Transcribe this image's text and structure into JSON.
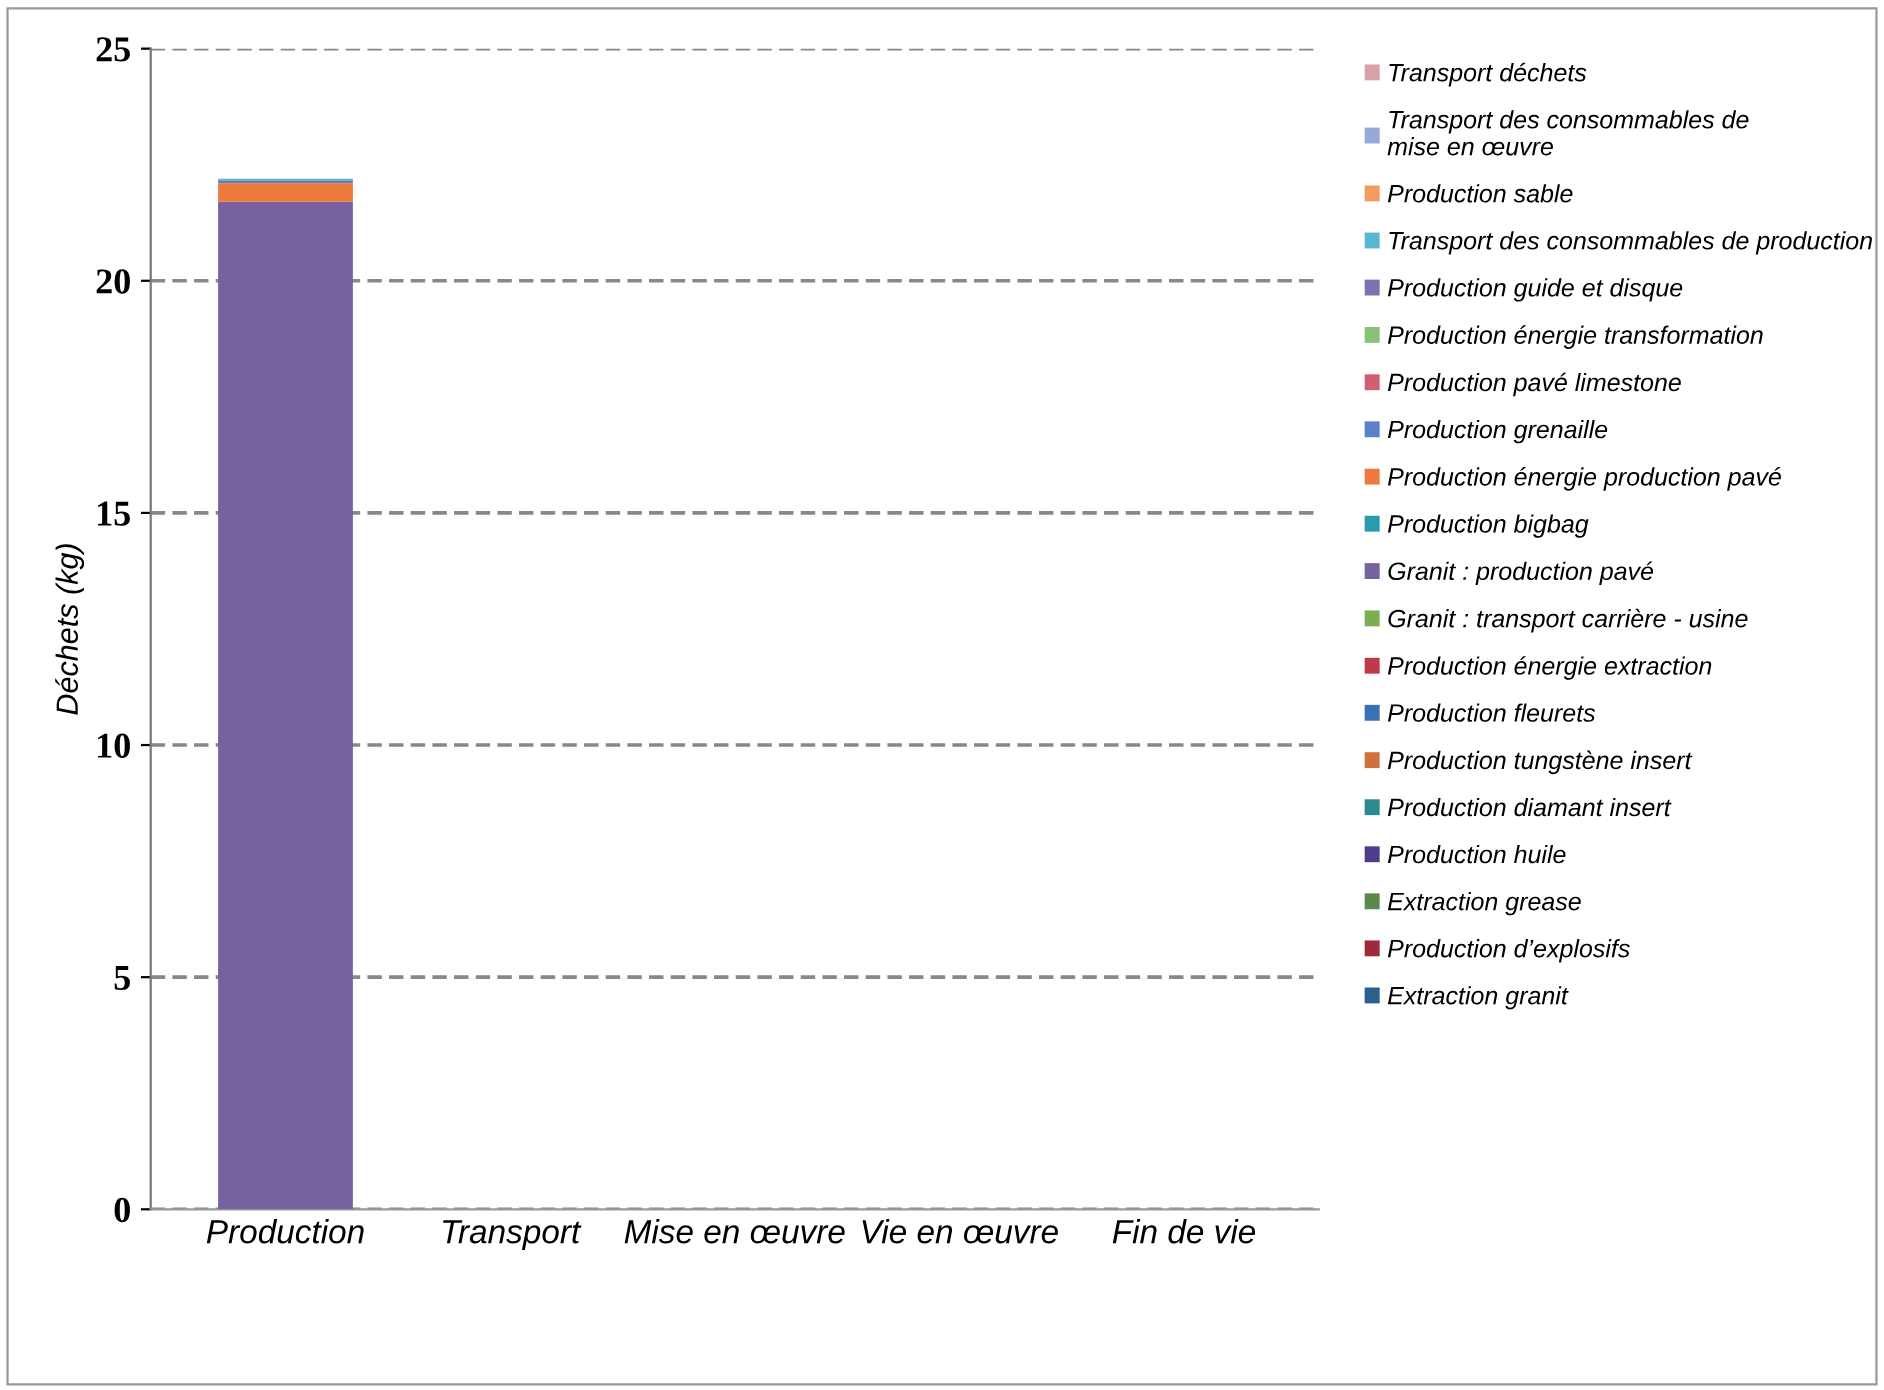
{
  "chart_data": {
    "type": "bar",
    "stacked": true,
    "ylabel": "Déchets (kg)",
    "categories": [
      "Production",
      "Transport",
      "Mise en œuvre",
      "Vie en œuvre",
      "Fin de vie"
    ],
    "ylim": [
      0,
      25
    ],
    "yticks": [
      0,
      5,
      10,
      15,
      20,
      25
    ],
    "grid": "y",
    "legend": "right",
    "series": [
      {
        "name": "Extraction granit",
        "color": "#2a5f8f",
        "values": [
          0,
          0,
          0,
          0,
          0
        ]
      },
      {
        "name": "Production d’explosifs",
        "color": "#9c2a3a",
        "values": [
          0,
          0,
          0,
          0,
          0
        ]
      },
      {
        "name": "Extraction grease",
        "color": "#5a8a4a",
        "values": [
          0,
          0,
          0,
          0,
          0
        ]
      },
      {
        "name": "Production huile",
        "color": "#4e3e8a",
        "values": [
          0,
          0,
          0,
          0,
          0
        ]
      },
      {
        "name": "Production diamant insert",
        "color": "#2a8a90",
        "values": [
          0,
          0,
          0,
          0,
          0
        ]
      },
      {
        "name": "Production tungstène insert",
        "color": "#d0703a",
        "values": [
          0,
          0,
          0,
          0,
          0
        ]
      },
      {
        "name": "Production fleurets",
        "color": "#3a70b8",
        "values": [
          0,
          0,
          0,
          0,
          0
        ]
      },
      {
        "name": "Production énergie extraction",
        "color": "#c0394a",
        "values": [
          0,
          0,
          0,
          0,
          0
        ]
      },
      {
        "name": "Granit : transport carrière - usine",
        "color": "#78b050",
        "values": [
          0,
          0,
          0,
          0,
          0
        ]
      },
      {
        "name": "Granit : production pavé",
        "color": "#76629e",
        "values": [
          21.7,
          0,
          0,
          0,
          0
        ]
      },
      {
        "name": "Production bigbag",
        "color": "#2a9ab0",
        "values": [
          0,
          0,
          0,
          0,
          0
        ]
      },
      {
        "name": "Production énergie production pavé",
        "color": "#ec7a3a",
        "values": [
          0.4,
          0,
          0,
          0,
          0
        ]
      },
      {
        "name": "Production grenaille",
        "color": "#5a80c8",
        "values": [
          0,
          0,
          0,
          0,
          0
        ]
      },
      {
        "name": "Production pavé limestone",
        "color": "#d06070",
        "values": [
          0,
          0,
          0,
          0,
          0
        ]
      },
      {
        "name": "Production énergie transformation",
        "color": "#8cc078",
        "values": [
          0,
          0,
          0,
          0,
          0
        ]
      },
      {
        "name": "Production guide et disque",
        "color": "#8070b0",
        "values": [
          0.05,
          0,
          0,
          0,
          0
        ]
      },
      {
        "name": "Transport des consommables de production",
        "color": "#58b8d0",
        "values": [
          0.05,
          0,
          0,
          0,
          0
        ]
      },
      {
        "name": "Production sable",
        "color": "#f49a60",
        "values": [
          0,
          0,
          0,
          0,
          0
        ]
      },
      {
        "name": "Transport des consommables de\nmise en œuvre",
        "color": "#98a8d8",
        "values": [
          0,
          0,
          0,
          0,
          0
        ]
      },
      {
        "name": "Transport déchets",
        "color": "#d8a0a8",
        "values": [
          0,
          0,
          0,
          0,
          0
        ]
      }
    ]
  }
}
